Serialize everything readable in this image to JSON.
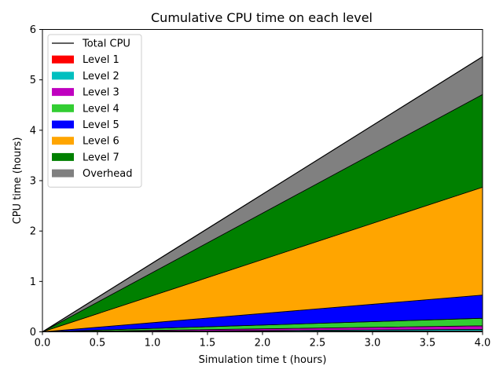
{
  "chart_data": {
    "type": "area",
    "title": "Cumulative CPU time on each level",
    "xlabel": "Simulation time t (hours)",
    "ylabel": "CPU time (hours)",
    "xlim": [
      0,
      4
    ],
    "ylim": [
      0,
      6
    ],
    "x_ticks": [
      "0.0",
      "0.5",
      "1.0",
      "1.5",
      "2.0",
      "2.5",
      "3.0",
      "3.5",
      "4.0"
    ],
    "y_ticks": [
      "0",
      "1",
      "2",
      "3",
      "4",
      "5",
      "6"
    ],
    "grid": false,
    "legend_position": "top-left",
    "stacked": true,
    "x": [
      0,
      4
    ],
    "series": [
      {
        "name": "Level 1",
        "color": "#ff0000",
        "values": [
          0,
          0.02
        ]
      },
      {
        "name": "Level 2",
        "color": "#00bfbf",
        "values": [
          0,
          0.03
        ]
      },
      {
        "name": "Level 3",
        "color": "#bf00bf",
        "values": [
          0,
          0.07
        ]
      },
      {
        "name": "Level 4",
        "color": "#32cd32",
        "values": [
          0,
          0.15
        ]
      },
      {
        "name": "Level 5",
        "color": "#0000ff",
        "values": [
          0,
          0.46
        ]
      },
      {
        "name": "Level 6",
        "color": "#ffa500",
        "values": [
          0,
          2.14
        ]
      },
      {
        "name": "Level 7",
        "color": "#008000",
        "values": [
          0,
          1.84
        ]
      },
      {
        "name": "Overhead",
        "color": "#808080",
        "values": [
          0,
          0.75
        ]
      }
    ],
    "total": {
      "name": "Total CPU",
      "color": "#000000",
      "values": [
        0,
        5.46
      ]
    }
  }
}
